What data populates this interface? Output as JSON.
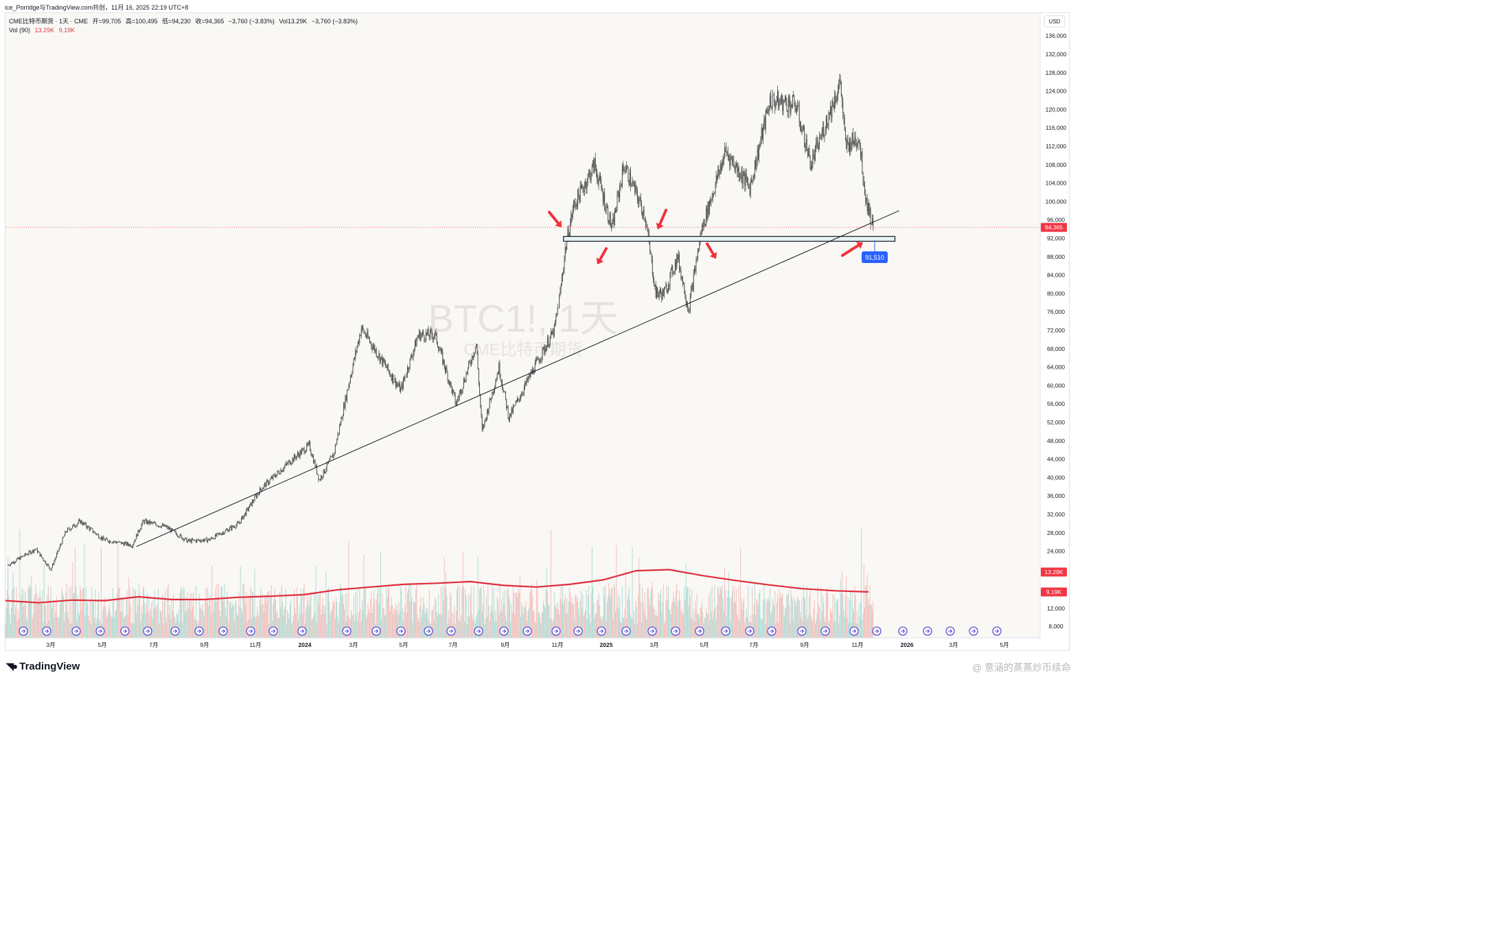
{
  "header": {
    "share_line": "ice_Porridge与TradingView.com共创，11月 16, 2025 22:19 UTC+8",
    "symbol_desc": "CME比特币期货 · 1天 · CME",
    "open_label": "开=99,705",
    "high_label": "高=100,495",
    "low_label": "低=94,230",
    "close_label": "收=94,365",
    "change_label": "−3,760 (−3.83%)",
    "vol_label": "Vol13.29K",
    "vol_change_label": "−3,760 (−3.83%)",
    "vol_indicator": "Vol (90)",
    "vol_value_1": "13.29K",
    "vol_value_2": "9.19K"
  },
  "watermark_chart": {
    "symbol": "BTC1!, 1天",
    "name": "CME比特币期货"
  },
  "footer": {
    "logo_text": "TradingView",
    "logo_icon": "tradingview-logo-icon",
    "corner_watermark": "@ 意涵的蒸蒸炒币续命"
  },
  "price_axis": {
    "currency": "USD",
    "labels": [
      "136,000",
      "132,000",
      "128,000",
      "124,000",
      "120,000",
      "116,000",
      "112,000",
      "108,000",
      "104,000",
      "100,000",
      "96,000",
      "92,000",
      "88,000",
      "84,000",
      "80,000",
      "76,000",
      "72,000",
      "68,000",
      "64,000",
      "60,000",
      "56,000",
      "52,000",
      "48,000",
      "44,000",
      "40,000",
      "36,000",
      "32,000",
      "28,000",
      "24,000",
      "8,000"
    ],
    "last_price_tag": "94,365",
    "vol_tag_1": "13.29K",
    "vol_tag_2": "9.19K",
    "vol_scale_label": "12,000"
  },
  "time_axis": {
    "labels": [
      "3月",
      "5月",
      "7月",
      "9月",
      "11月",
      "2024",
      "3月",
      "5月",
      "7月",
      "9月",
      "11月",
      "2025",
      "3月",
      "5月",
      "7月",
      "9月",
      "11月",
      "2026",
      "3月",
      "5月"
    ]
  },
  "annotations": {
    "support_box_price_range": [
      91400,
      92400
    ],
    "line_price_tag": "91,510",
    "trendline_color": "#131722",
    "arrow_color": "#f0323c",
    "box_fill": "#e6f3f3",
    "event_icon_name": "earnings-arrow-icon"
  },
  "colors": {
    "up": "#26a69a",
    "down": "#ef5350",
    "candle": "#4a4a4a",
    "ma_line": "#e02b3a",
    "price_tag_bg": "#f23645",
    "blue_tag_bg": "#2962ff",
    "event_icon": "#5b4ed8"
  },
  "chart_data": {
    "type": "candlestick",
    "title": "CME比特币期货 · 1天",
    "xlabel": "",
    "ylabel": "USD",
    "ylim": [
      8000,
      138000
    ],
    "x_range": [
      "2023-01-15",
      "2026-06-01"
    ],
    "last_close": 94365,
    "close_path": [
      {
        "date": "2023-01-18",
        "close": 21000
      },
      {
        "date": "2023-02-20",
        "close": 24500
      },
      {
        "date": "2023-03-10",
        "close": 20000
      },
      {
        "date": "2023-03-28",
        "close": 28300
      },
      {
        "date": "2023-04-14",
        "close": 30500
      },
      {
        "date": "2023-05-12",
        "close": 26500
      },
      {
        "date": "2023-06-15",
        "close": 25300
      },
      {
        "date": "2023-06-28",
        "close": 30500
      },
      {
        "date": "2023-07-25",
        "close": 29300
      },
      {
        "date": "2023-08-20",
        "close": 26200
      },
      {
        "date": "2023-09-15",
        "close": 26500
      },
      {
        "date": "2023-10-20",
        "close": 30000
      },
      {
        "date": "2023-11-15",
        "close": 37500
      },
      {
        "date": "2023-12-20",
        "close": 43500
      },
      {
        "date": "2024-01-12",
        "close": 47000
      },
      {
        "date": "2024-01-24",
        "close": 39500
      },
      {
        "date": "2024-02-10",
        "close": 45000
      },
      {
        "date": "2024-03-01",
        "close": 62000
      },
      {
        "date": "2024-03-14",
        "close": 72500
      },
      {
        "date": "2024-04-30",
        "close": 59000
      },
      {
        "date": "2024-05-21",
        "close": 71000
      },
      {
        "date": "2024-06-10",
        "close": 71000
      },
      {
        "date": "2024-07-05",
        "close": 56000
      },
      {
        "date": "2024-07-29",
        "close": 69000
      },
      {
        "date": "2024-08-05",
        "close": 50000
      },
      {
        "date": "2024-08-25",
        "close": 64000
      },
      {
        "date": "2024-09-06",
        "close": 53000
      },
      {
        "date": "2024-10-05",
        "close": 63500
      },
      {
        "date": "2024-10-30",
        "close": 72000
      },
      {
        "date": "2024-11-06",
        "close": 80000
      },
      {
        "date": "2024-11-12",
        "close": 89500
      },
      {
        "date": "2024-11-22",
        "close": 99000
      },
      {
        "date": "2024-12-17",
        "close": 108000
      },
      {
        "date": "2025-01-07",
        "close": 94000
      },
      {
        "date": "2025-01-21",
        "close": 108000
      },
      {
        "date": "2025-02-15",
        "close": 97000
      },
      {
        "date": "2025-02-28",
        "close": 80000
      },
      {
        "date": "2025-03-10",
        "close": 80000
      },
      {
        "date": "2025-03-26",
        "close": 88000
      },
      {
        "date": "2025-04-08",
        "close": 76500
      },
      {
        "date": "2025-04-23",
        "close": 93500
      },
      {
        "date": "2025-05-22",
        "close": 111000
      },
      {
        "date": "2025-06-20",
        "close": 103000
      },
      {
        "date": "2025-07-14",
        "close": 122000
      },
      {
        "date": "2025-08-14",
        "close": 121000
      },
      {
        "date": "2025-09-01",
        "close": 108000
      },
      {
        "date": "2025-10-06",
        "close": 126000
      },
      {
        "date": "2025-10-12",
        "close": 112000
      },
      {
        "date": "2025-10-28",
        "close": 114000
      },
      {
        "date": "2025-11-05",
        "close": 101000
      },
      {
        "date": "2025-11-14",
        "close": 94365
      }
    ],
    "series": [
      {
        "name": "Vol (90)",
        "type": "line",
        "values_k": [
          7.6,
          7.2,
          7.7,
          7.6,
          8.3,
          7.8,
          7.8,
          8.2,
          8.4,
          8.7,
          9.6,
          10.1,
          10.6,
          10.8,
          11.1,
          10.4,
          10.1,
          10.6,
          11.4,
          13.1,
          13.3,
          12.2,
          11.3,
          10.5,
          9.8,
          9.4,
          9.2
        ]
      }
    ],
    "trendline": {
      "from": {
        "date": "2023-06-20",
        "price": 25000
      },
      "to": {
        "date": "2025-12-15",
        "price": 98000
      }
    },
    "support_zone": {
      "from_date": "2024-11-10",
      "to_date": "2025-12-10",
      "price_low": 91400,
      "price_high": 92400
    }
  }
}
